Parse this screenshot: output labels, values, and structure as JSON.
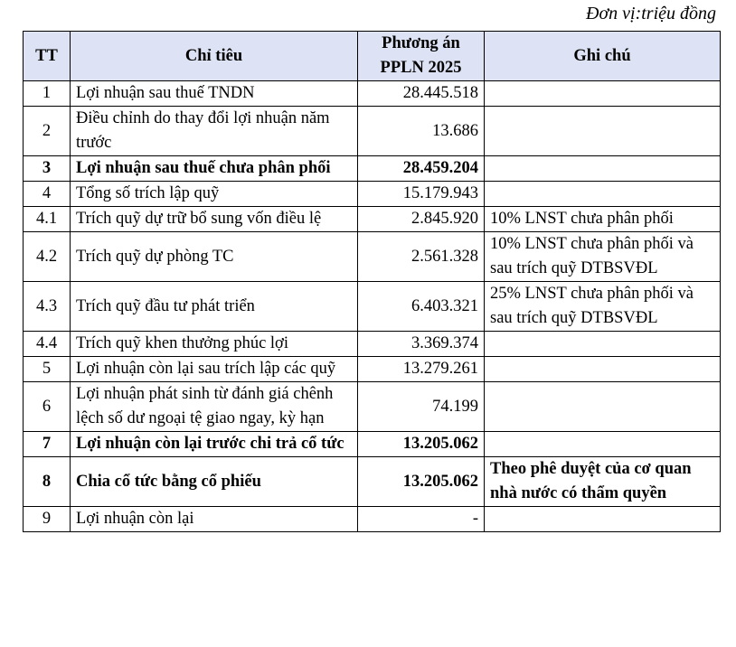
{
  "unit_label": "Đơn vị:triệu đồng",
  "table": {
    "headers": [
      "TT",
      "Chỉ tiêu",
      "Phương án PPLN 2025",
      "Ghi chú"
    ],
    "rows": [
      {
        "tt": "1",
        "label": "Lợi nhuận sau thuế TNDN",
        "value": "28.445.518",
        "note": "",
        "bold": false
      },
      {
        "tt": "2",
        "label": "Điều chỉnh do thay đổi lợi nhuận năm trước",
        "value": "13.686",
        "note": "",
        "bold": false
      },
      {
        "tt": "3",
        "label": "Lợi nhuận sau thuế chưa phân phối",
        "value": "28.459.204",
        "note": "",
        "bold": true
      },
      {
        "tt": "4",
        "label": "Tổng số trích lập quỹ",
        "value": "15.179.943",
        "note": "",
        "bold": false
      },
      {
        "tt": "4.1",
        "label": "Trích quỹ dự trữ bổ sung vốn điều lệ",
        "value": "2.845.920",
        "note": "10% LNST chưa phân phối",
        "bold": false
      },
      {
        "tt": "4.2",
        "label": "Trích quỹ dự phòng TC",
        "value": "2.561.328",
        "note": "10% LNST chưa phân phối và sau trích quỹ DTBSVĐL",
        "bold": false
      },
      {
        "tt": "4.3",
        "label": "Trích quỹ đầu tư phát triển",
        "value": "6.403.321",
        "note": "25% LNST chưa phân phối và sau trích quỹ DTBSVĐL",
        "bold": false
      },
      {
        "tt": "4.4",
        "label": "Trích quỹ khen thưởng phúc lợi",
        "value": "3.369.374",
        "note": "",
        "bold": false
      },
      {
        "tt": "5",
        "label": "Lợi nhuận còn lại sau trích lập các quỹ",
        "value": "13.279.261",
        "note": "",
        "bold": false
      },
      {
        "tt": "6",
        "label": "Lợi nhuận phát sinh từ đánh giá chênh lệch số dư ngoại tệ giao ngay, kỳ hạn",
        "value": "74.199",
        "note": "",
        "bold": false
      },
      {
        "tt": "7",
        "label": "Lợi nhuận còn lại trước chi trả cổ tức",
        "value": "13.205.062",
        "note": "",
        "bold": true
      },
      {
        "tt": "8",
        "label": "Chia cổ tức bằng cổ phiếu",
        "value": "13.205.062",
        "note": "Theo phê duyệt của cơ quan nhà nước có thẩm quyền",
        "bold": true
      },
      {
        "tt": "9",
        "label": "Lợi nhuận còn lại",
        "value": "-",
        "note": "",
        "bold": false
      }
    ]
  }
}
